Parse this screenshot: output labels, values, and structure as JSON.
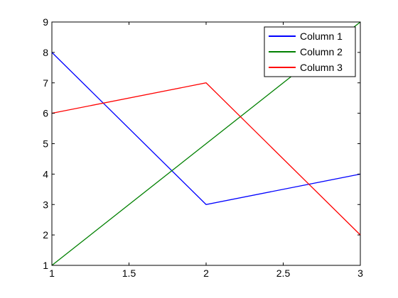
{
  "chart_data": {
    "type": "line",
    "x": [
      1,
      2,
      3
    ],
    "series": [
      {
        "name": "Column 1",
        "values": [
          8,
          3,
          4
        ],
        "color": "#0000ff"
      },
      {
        "name": "Column 2",
        "values": [
          1,
          5,
          9
        ],
        "color": "#008000"
      },
      {
        "name": "Column 3",
        "values": [
          6,
          7,
          2
        ],
        "color": "#ff0000"
      }
    ],
    "xlim": [
      1,
      3
    ],
    "ylim": [
      1,
      9
    ],
    "xticks": [
      1,
      1.5,
      2,
      2.5,
      3
    ],
    "xtick_labels": [
      "1",
      "1.5",
      "2",
      "2.5",
      "3"
    ],
    "yticks": [
      1,
      2,
      3,
      4,
      5,
      6,
      7,
      8,
      9
    ],
    "ytick_labels": [
      "1",
      "2",
      "3",
      "4",
      "5",
      "6",
      "7",
      "8",
      "9"
    ],
    "grid": false,
    "legend_position": "top-right"
  }
}
